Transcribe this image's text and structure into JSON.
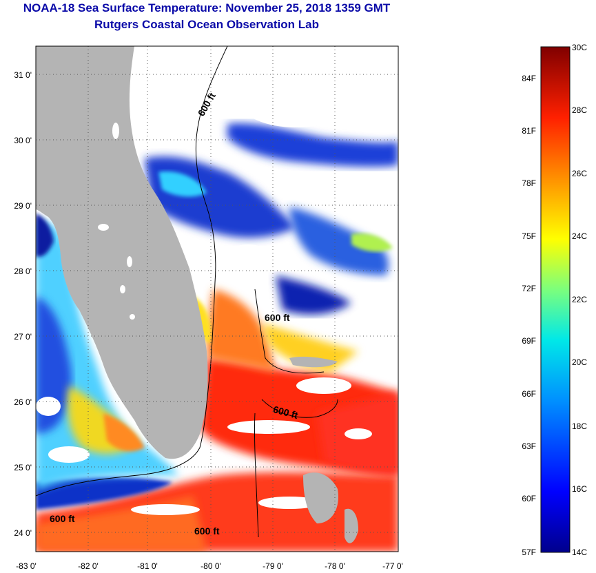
{
  "title": "NOAA-18 Sea Surface Temperature:  November 25, 2018 1359 GMT",
  "subtitle": "Rutgers Coastal Ocean Observation Lab",
  "lat_labels": [
    "31 0'",
    "30 0'",
    "29 0'",
    "28 0'",
    "27 0'",
    "26 0'",
    "25 0'",
    "24 0'"
  ],
  "lon_labels": [
    "-83 0'",
    "-82 0'",
    "-81 0'",
    "-80 0'",
    "-79 0'",
    "-78 0'",
    "-77 0'"
  ],
  "contour_label": "600 ft",
  "scale_c": [
    "30C",
    "28C",
    "26C",
    "24C",
    "22C",
    "20C",
    "18C",
    "16C",
    "14C"
  ],
  "scale_f": [
    "84F",
    "81F",
    "78F",
    "75F",
    "72F",
    "69F",
    "66F",
    "63F",
    "60F",
    "57F"
  ],
  "colors": {
    "land": "#b4b4b4",
    "cloud": "#ffffff",
    "title": "#0a0aa8"
  }
}
